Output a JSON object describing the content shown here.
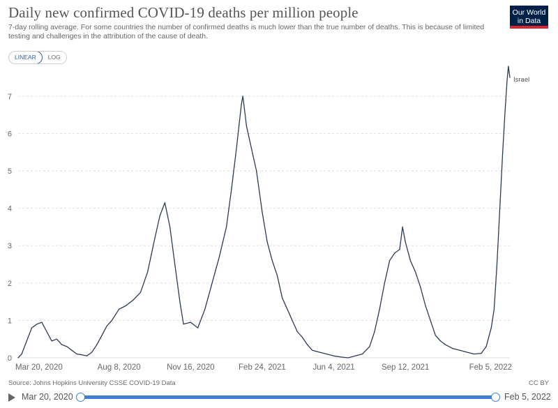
{
  "title": "Daily new confirmed COVID-19 deaths per million people",
  "subtitle": "7-day rolling average. For some countries the number of confirmed deaths is much lower than the true number of deaths. This is because of limited testing and challenges in the attribution of the cause of death.",
  "logo": {
    "line1": "Our World",
    "line2": "in Data"
  },
  "scale_toggle": {
    "linear": "LINEAR",
    "log": "LOG",
    "selected": "LINEAR"
  },
  "source": "Source: Johns Hopkins University CSSE COVID-19 Data",
  "license": "CC BY",
  "timeline": {
    "start_label": "Mar 20, 2020",
    "end_label": "Feb 5, 2022"
  },
  "colors": {
    "line": "#2b3a52",
    "grid": "#dddddd",
    "accent": "#3f7fcf",
    "logo_bg": "#002147",
    "logo_bar": "#d9262e"
  },
  "chart_data": {
    "type": "line",
    "title": "Daily new confirmed COVID-19 deaths per million people",
    "xlabel": "",
    "ylabel": "",
    "x_ticks": [
      "Mar 20, 2020",
      "Aug 8, 2020",
      "Nov 16, 2020",
      "Feb 24, 2021",
      "Jun 4, 2021",
      "Sep 12, 2021",
      "Feb 5, 2022"
    ],
    "y_ticks": [
      0,
      1,
      2,
      3,
      4,
      5,
      6,
      7
    ],
    "ylim": [
      0,
      7.8
    ],
    "xlim": [
      "2020-03-20",
      "2022-02-05"
    ],
    "grid": true,
    "series": [
      {
        "name": "Israel",
        "points": [
          [
            "2020-03-20",
            0.0
          ],
          [
            "2020-03-25",
            0.1
          ],
          [
            "2020-04-01",
            0.45
          ],
          [
            "2020-04-08",
            0.8
          ],
          [
            "2020-04-15",
            0.9
          ],
          [
            "2020-04-22",
            0.95
          ],
          [
            "2020-04-29",
            0.7
          ],
          [
            "2020-05-06",
            0.45
          ],
          [
            "2020-05-13",
            0.5
          ],
          [
            "2020-05-20",
            0.35
          ],
          [
            "2020-05-27",
            0.3
          ],
          [
            "2020-06-03",
            0.2
          ],
          [
            "2020-06-10",
            0.1
          ],
          [
            "2020-06-17",
            0.08
          ],
          [
            "2020-06-24",
            0.05
          ],
          [
            "2020-07-01",
            0.15
          ],
          [
            "2020-07-08",
            0.35
          ],
          [
            "2020-07-15",
            0.6
          ],
          [
            "2020-07-22",
            0.85
          ],
          [
            "2020-07-29",
            1.0
          ],
          [
            "2020-08-08",
            1.3
          ],
          [
            "2020-08-18",
            1.4
          ],
          [
            "2020-08-28",
            1.55
          ],
          [
            "2020-09-07",
            1.75
          ],
          [
            "2020-09-17",
            2.3
          ],
          [
            "2020-09-27",
            3.2
          ],
          [
            "2020-10-04",
            3.8
          ],
          [
            "2020-10-08",
            4.0
          ],
          [
            "2020-10-11",
            4.15
          ],
          [
            "2020-10-18",
            3.5
          ],
          [
            "2020-10-25",
            2.5
          ],
          [
            "2020-11-01",
            1.5
          ],
          [
            "2020-11-06",
            0.9
          ],
          [
            "2020-11-16",
            0.95
          ],
          [
            "2020-11-26",
            0.8
          ],
          [
            "2020-12-06",
            1.3
          ],
          [
            "2020-12-16",
            2.0
          ],
          [
            "2020-12-26",
            2.7
          ],
          [
            "2021-01-05",
            3.5
          ],
          [
            "2021-01-12",
            4.5
          ],
          [
            "2021-01-19",
            5.6
          ],
          [
            "2021-01-26",
            6.8
          ],
          [
            "2021-01-28",
            7.0
          ],
          [
            "2021-02-02",
            6.2
          ],
          [
            "2021-02-09",
            5.6
          ],
          [
            "2021-02-16",
            5.0
          ],
          [
            "2021-02-24",
            3.9
          ],
          [
            "2021-03-03",
            3.1
          ],
          [
            "2021-03-10",
            2.6
          ],
          [
            "2021-03-17",
            2.2
          ],
          [
            "2021-03-24",
            1.6
          ],
          [
            "2021-03-31",
            1.3
          ],
          [
            "2021-04-07",
            1.0
          ],
          [
            "2021-04-14",
            0.7
          ],
          [
            "2021-04-21",
            0.55
          ],
          [
            "2021-04-28",
            0.35
          ],
          [
            "2021-05-05",
            0.2
          ],
          [
            "2021-05-15",
            0.15
          ],
          [
            "2021-05-25",
            0.1
          ],
          [
            "2021-06-04",
            0.05
          ],
          [
            "2021-06-14",
            0.02
          ],
          [
            "2021-06-24",
            0.0
          ],
          [
            "2021-07-04",
            0.05
          ],
          [
            "2021-07-14",
            0.1
          ],
          [
            "2021-07-24",
            0.3
          ],
          [
            "2021-07-31",
            0.7
          ],
          [
            "2021-08-07",
            1.3
          ],
          [
            "2021-08-14",
            2.0
          ],
          [
            "2021-08-21",
            2.6
          ],
          [
            "2021-08-28",
            2.8
          ],
          [
            "2021-09-04",
            2.9
          ],
          [
            "2021-09-08",
            3.5
          ],
          [
            "2021-09-12",
            3.1
          ],
          [
            "2021-09-19",
            2.6
          ],
          [
            "2021-09-26",
            2.3
          ],
          [
            "2021-10-03",
            1.9
          ],
          [
            "2021-10-10",
            1.4
          ],
          [
            "2021-10-17",
            1.0
          ],
          [
            "2021-10-24",
            0.6
          ],
          [
            "2021-10-31",
            0.45
          ],
          [
            "2021-11-07",
            0.35
          ],
          [
            "2021-11-17",
            0.25
          ],
          [
            "2021-11-27",
            0.2
          ],
          [
            "2021-12-07",
            0.15
          ],
          [
            "2021-12-17",
            0.1
          ],
          [
            "2021-12-27",
            0.12
          ],
          [
            "2022-01-03",
            0.3
          ],
          [
            "2022-01-10",
            0.8
          ],
          [
            "2022-01-14",
            1.3
          ],
          [
            "2022-01-18",
            2.5
          ],
          [
            "2022-01-22",
            4.0
          ],
          [
            "2022-01-26",
            5.5
          ],
          [
            "2022-01-29",
            6.5
          ],
          [
            "2022-02-01",
            7.4
          ],
          [
            "2022-02-03",
            7.8
          ],
          [
            "2022-02-05",
            7.5
          ]
        ]
      }
    ]
  }
}
